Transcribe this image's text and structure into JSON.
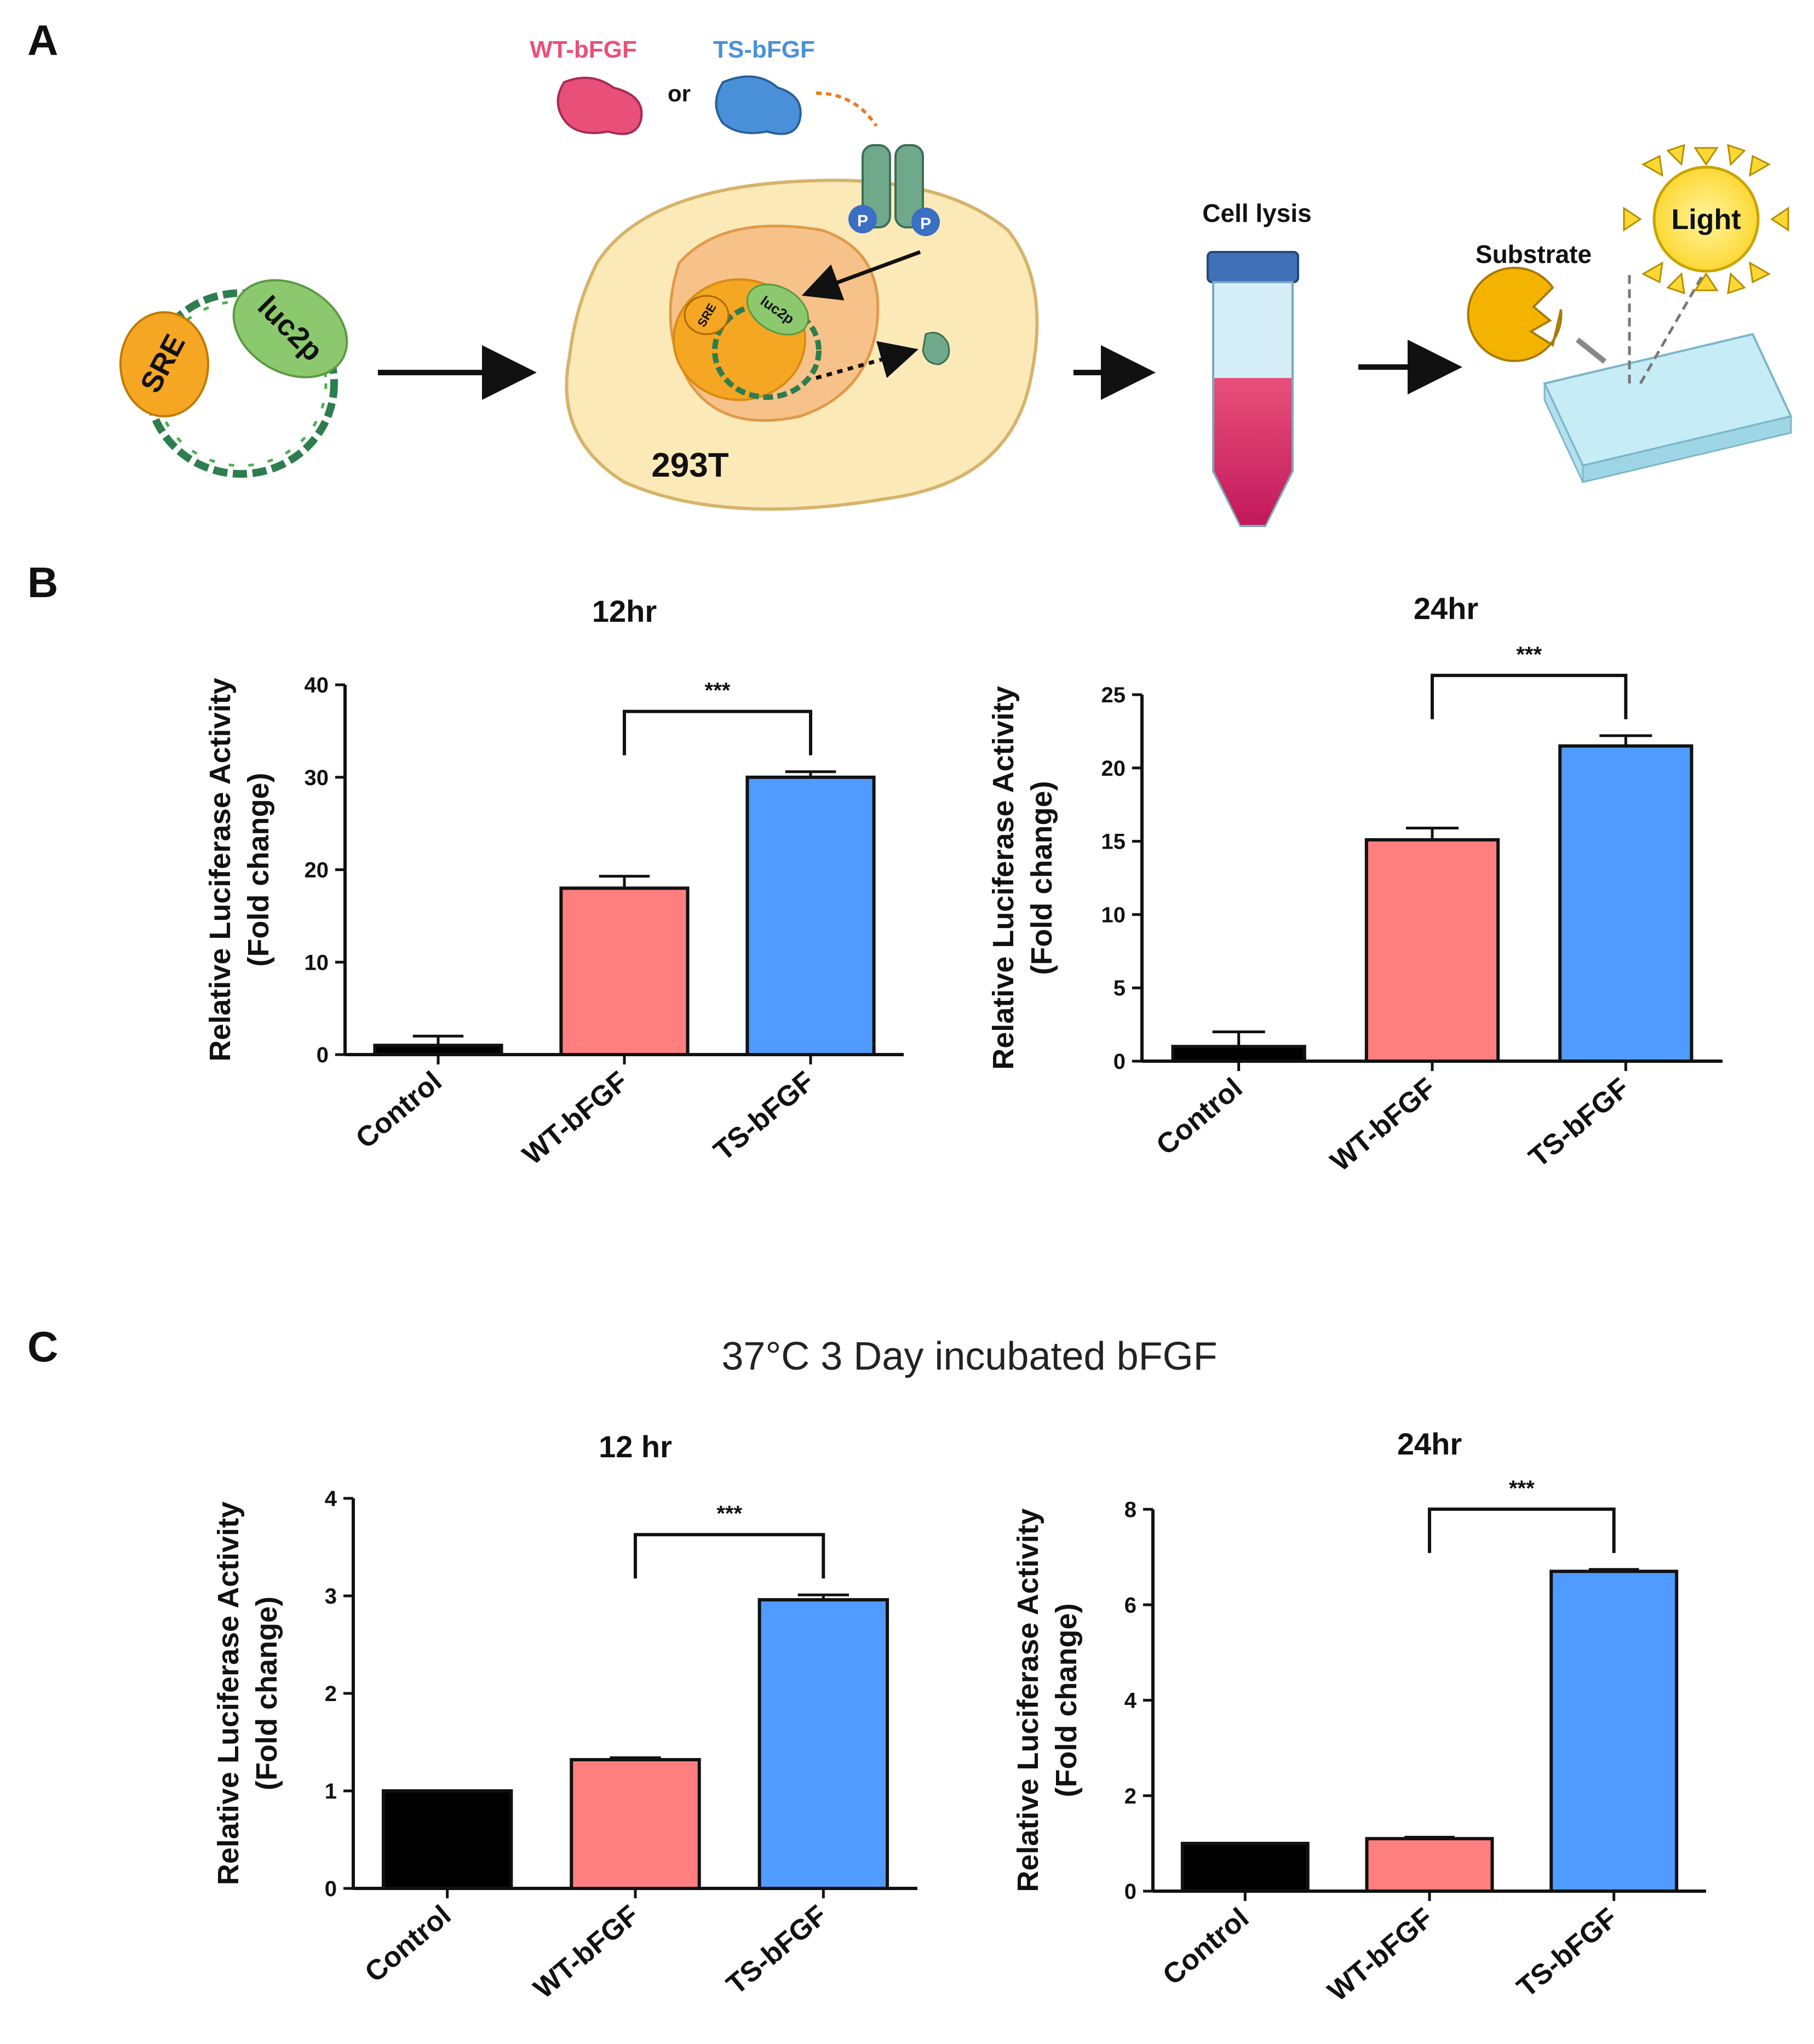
{
  "panels": {
    "a": "A",
    "b": "B",
    "c": "C"
  },
  "schematic": {
    "wt_label": "WT-bFGF",
    "or_label": "or",
    "ts_label": "TS-bFGF",
    "sre_label": "SRE",
    "luc2p_label": "luc2p",
    "cell_line_label": "293T",
    "phospho_label": "P",
    "cell_lysis_label": "Cell lysis",
    "substrate_label": "Substrate",
    "light_label": "Light",
    "colors": {
      "wt": "#e8507a",
      "ts": "#4a90d9",
      "sre": "#f5a623",
      "luc2p": "#8cc96e",
      "dna": "#2e7d4f"
    }
  },
  "section_c_title": "37°C 3 Day incubated bFGF",
  "colors": {
    "control": "#000000",
    "wt": "#ff7f7f",
    "ts": "#4f9bff"
  },
  "chart_data": [
    {
      "type": "bar",
      "panel": "B",
      "title": "12hr",
      "ylabel": [
        "Relative Luciferase Activity",
        "(Fold change)"
      ],
      "categories": [
        "Control",
        "WT-bFGF",
        "TS-bFGF"
      ],
      "values": [
        1,
        18,
        30
      ],
      "errors": [
        1,
        1.3,
        0.6
      ],
      "ylim": [
        0,
        40
      ],
      "yticks": [
        0,
        10,
        20,
        30,
        40
      ],
      "significance": {
        "from": "WT-bFGF",
        "to": "TS-bFGF",
        "label": "***"
      }
    },
    {
      "type": "bar",
      "panel": "B",
      "title": "24hr",
      "ylabel": [
        "Relative Luciferase Activity",
        "(Fold change)"
      ],
      "categories": [
        "Control",
        "WT-bFGF",
        "TS-bFGF"
      ],
      "values": [
        1,
        15.1,
        21.5
      ],
      "errors": [
        1,
        0.8,
        0.7
      ],
      "ylim": [
        0,
        25
      ],
      "yticks": [
        0,
        5,
        10,
        15,
        20,
        25
      ],
      "significance": {
        "from": "WT-bFGF",
        "to": "TS-bFGF",
        "label": "***"
      }
    },
    {
      "type": "bar",
      "panel": "C",
      "title": "12 hr",
      "ylabel": [
        "Relative Luciferase Activity",
        "(Fold change)"
      ],
      "categories": [
        "Control",
        "WT-bFGF",
        "TS-bFGF"
      ],
      "values": [
        1,
        1.32,
        2.96
      ],
      "errors": [
        0,
        0.02,
        0.05
      ],
      "ylim": [
        0,
        4
      ],
      "yticks": [
        0,
        1,
        2,
        3,
        4
      ],
      "significance": {
        "from": "WT-bFGF",
        "to": "TS-bFGF",
        "label": "***"
      }
    },
    {
      "type": "bar",
      "panel": "C",
      "title": "24hr",
      "ylabel": [
        "Relative Luciferase Activity",
        "(Fold change)"
      ],
      "categories": [
        "Control",
        "WT-bFGF",
        "TS-bFGF"
      ],
      "values": [
        1,
        1.1,
        6.7
      ],
      "errors": [
        0,
        0.03,
        0.04
      ],
      "ylim": [
        0,
        8
      ],
      "yticks": [
        0,
        2,
        4,
        6,
        8
      ],
      "significance": {
        "from": "WT-bFGF",
        "to": "TS-bFGF",
        "label": "***"
      }
    }
  ]
}
